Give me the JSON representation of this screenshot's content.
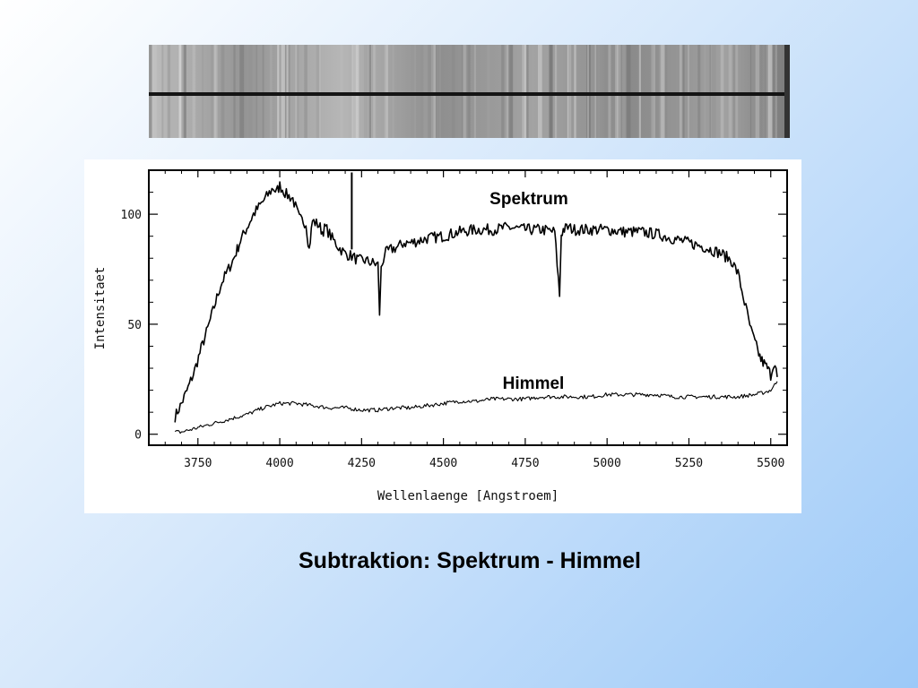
{
  "caption": "Subtraktion: Spektrum - Himmel",
  "chart_data": {
    "type": "line",
    "xlabel": "Wellenlaenge [Angstroem]",
    "ylabel": "Intensitaet",
    "xlim": [
      3600,
      5550
    ],
    "ylim": [
      -5,
      120
    ],
    "x_ticks": [
      3750,
      4000,
      4250,
      4500,
      4750,
      5000,
      5250,
      5500
    ],
    "x_tick_labels": [
      "3750",
      "4000",
      "4250",
      "4500",
      "4750",
      "5000",
      "5250",
      "5500"
    ],
    "y_ticks": [
      0,
      50,
      100
    ],
    "y_tick_labels": [
      "0",
      "50",
      "100"
    ],
    "grid": false,
    "series": [
      {
        "name": "Spektrum",
        "x": [
          3680,
          3700,
          3720,
          3740,
          3760,
          3780,
          3800,
          3820,
          3840,
          3860,
          3870,
          3880,
          3900,
          3910,
          3920,
          3940,
          3960,
          3980,
          3990,
          4000,
          4020,
          4040,
          4060,
          4080,
          4090,
          4100,
          4120,
          4130,
          4140,
          4160,
          4180,
          4200,
          4220,
          4240,
          4260,
          4280,
          4300,
          4305,
          4310,
          4320,
          4340,
          4360,
          4380,
          4400,
          4450,
          4500,
          4550,
          4600,
          4650,
          4700,
          4750,
          4800,
          4840,
          4855,
          4860,
          4866,
          4880,
          4900,
          4950,
          5000,
          5050,
          5100,
          5150,
          5200,
          5250,
          5300,
          5350,
          5380,
          5400,
          5420,
          5440,
          5460,
          5470,
          5480,
          5490,
          5500,
          5510,
          5520
        ],
        "y": [
          8,
          14,
          21,
          29,
          39,
          48,
          58,
          68,
          74,
          80,
          84,
          88,
          94,
          97,
          100,
          104,
          108,
          112,
          110,
          113,
          109,
          107,
          98,
          96,
          84,
          97,
          95,
          92,
          94,
          89,
          85,
          82,
          81,
          79,
          79,
          78,
          77,
          55,
          75,
          82,
          84,
          85,
          87,
          87,
          89,
          90,
          92,
          93,
          93,
          94,
          93,
          93,
          92,
          63,
          91,
          93,
          94,
          93,
          93,
          93,
          92,
          92,
          91,
          89,
          87,
          85,
          82,
          79,
          73,
          60,
          47,
          38,
          34,
          32,
          30,
          27,
          33,
          26
        ]
      },
      {
        "name": "Himmel",
        "x": [
          3680,
          3700,
          3750,
          3800,
          3850,
          3900,
          3950,
          4000,
          4050,
          4100,
          4150,
          4200,
          4250,
          4300,
          4350,
          4400,
          4450,
          4500,
          4550,
          4600,
          4650,
          4700,
          4750,
          4800,
          4850,
          4900,
          4950,
          5000,
          5050,
          5100,
          5150,
          5200,
          5250,
          5300,
          5350,
          5400,
          5450,
          5480,
          5500,
          5520
        ],
        "y": [
          1,
          1,
          3,
          5,
          7,
          9,
          12,
          14,
          14,
          13,
          12,
          12,
          11,
          11,
          12,
          12,
          13,
          14,
          15,
          15,
          16,
          16,
          16,
          17,
          17,
          17,
          17,
          18,
          18,
          18,
          18,
          17,
          17,
          17,
          17,
          17,
          18,
          19,
          20,
          24
        ]
      }
    ]
  }
}
